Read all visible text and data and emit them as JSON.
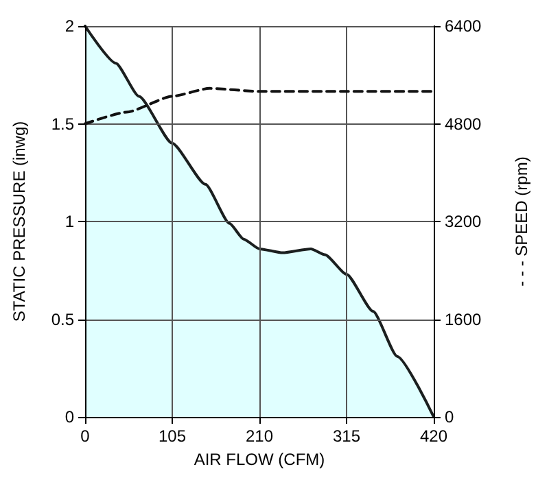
{
  "chart_data": {
    "type": "area",
    "xlabel": "AIR FLOW (CFM)",
    "ylabel": "STATIC PRESSURE (inwg)",
    "y2label": "- - - SPEED (rpm)",
    "xlim": [
      0,
      420
    ],
    "xticks": [
      0,
      105,
      210,
      315,
      420
    ],
    "ylim": [
      0,
      2
    ],
    "yticks": [
      0,
      0.5,
      1,
      1.5,
      2
    ],
    "y2lim": [
      0,
      6400
    ],
    "y2ticks": [
      0,
      1600,
      3200,
      4800,
      6400
    ],
    "grid": true,
    "marker": "none",
    "series": [
      {
        "color": "#e0ffff",
        "line_style": "solid",
        "x": [
          0,
          37,
          65,
          105,
          145,
          174,
          191,
          210,
          238,
          272,
          289,
          315,
          347,
          376,
          420
        ],
        "values": [
          2,
          1.81,
          1.64,
          1.4,
          1.19,
          0.99,
          0.91,
          0.86,
          0.84,
          0.86,
          0.83,
          0.73,
          0.54,
          0.31,
          0
        ]
      },
      {
        "type": "line",
        "axis": "y2",
        "color": "#111111",
        "line_style": "dashed",
        "x": [
          0,
          50,
          105,
          150,
          210,
          315,
          420
        ],
        "values": [
          4800,
          4990,
          5250,
          5380,
          5330,
          5330,
          5330
        ]
      }
    ]
  }
}
